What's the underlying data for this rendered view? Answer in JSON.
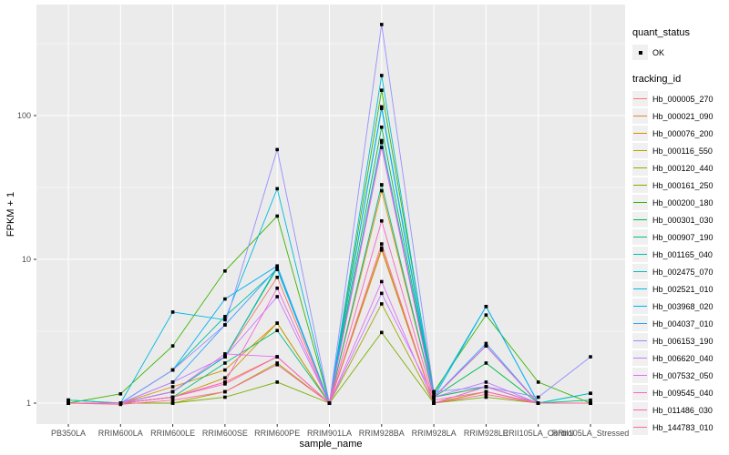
{
  "legend": {
    "quant_status_title": "quant_status",
    "quant_status_items": [
      "OK"
    ],
    "tracking_id_title": "tracking_id"
  },
  "colors": {
    "panel_background": "#EBEBEB",
    "grid": "#FFFFFF",
    "tick_label": "#4D4D4D",
    "axis_title": "#000000",
    "marker": "#000000",
    "legend_key_background": "#F0F0F0"
  },
  "chart_data": {
    "type": "line",
    "title": "",
    "xlabel": "sample_name",
    "ylabel": "FPKM + 1",
    "y_scale": "log10",
    "y_ticks": [
      1,
      10,
      100
    ],
    "y_minor_ticks": [
      3.162,
      31.62,
      316.2
    ],
    "ylim": [
      0.72,
      590
    ],
    "grid": true,
    "legend_position": "right",
    "marker": "black-square",
    "categories": [
      "PB350LA",
      "RRIM600LA",
      "RRIM600LE",
      "RRIM600SE",
      "RRIM600PE",
      "RRIM901LA",
      "RRIM928BA",
      "RRIM928LA",
      "RRIM928LE",
      "RRII105LA_Control",
      "RRII105LA_Stressed"
    ],
    "series": [
      {
        "name": "Hb_000005_270",
        "color": "#F8766D",
        "quant_status": "OK",
        "values": [
          1,
          1,
          1.2,
          2.1,
          7.5,
          1,
          33,
          1.1,
          2.5,
          1,
          1
        ]
      },
      {
        "name": "Hb_000021_090",
        "color": "#EA8331",
        "quant_status": "OK",
        "values": [
          1,
          1,
          1.1,
          1.4,
          2.1,
          1,
          11.6,
          1,
          1.2,
          1,
          1
        ]
      },
      {
        "name": "Hb_000076_200",
        "color": "#D89000",
        "quant_status": "OK",
        "values": [
          1,
          1,
          1.3,
          1.7,
          3.6,
          1,
          30,
          1.1,
          1.3,
          1,
          1
        ]
      },
      {
        "name": "Hb_000116_550",
        "color": "#C09B00",
        "quant_status": "OK",
        "values": [
          1,
          1,
          1.1,
          1.5,
          3.6,
          1,
          12,
          1,
          1.2,
          1,
          1
        ]
      },
      {
        "name": "Hb_000120_440",
        "color": "#A3A500",
        "quant_status": "OK",
        "values": [
          1,
          1,
          1,
          1.2,
          1.9,
          1,
          4.9,
          1,
          1.3,
          1,
          1
        ]
      },
      {
        "name": "Hb_000161_250",
        "color": "#7CAE00",
        "quant_status": "OK",
        "values": [
          1,
          1,
          1,
          1.1,
          1.4,
          1,
          3.1,
          1,
          1.1,
          1,
          1
        ]
      },
      {
        "name": "Hb_000200_180",
        "color": "#39B600",
        "quant_status": "OK",
        "values": [
          1,
          1.16,
          2.5,
          8.3,
          20,
          1,
          150,
          1.2,
          4.1,
          1.4,
          1
        ]
      },
      {
        "name": "Hb_000301_030",
        "color": "#00BB4E",
        "quant_status": "OK",
        "values": [
          1,
          1,
          1.2,
          2.1,
          8.7,
          1,
          83,
          1.1,
          1.9,
          1,
          1
        ]
      },
      {
        "name": "Hb_000907_190",
        "color": "#00BF7D",
        "quant_status": "OK",
        "values": [
          1.05,
          1,
          1.1,
          1.9,
          3.2,
          1,
          67,
          1.1,
          1.3,
          1,
          1.05
        ]
      },
      {
        "name": "Hb_001165_040",
        "color": "#00C1A3",
        "quant_status": "OK",
        "values": [
          1,
          1,
          1.7,
          4,
          8.5,
          1,
          33,
          1.1,
          2.5,
          1,
          1.17
        ]
      },
      {
        "name": "Hb_002475_070",
        "color": "#00BFC4",
        "quant_status": "OK",
        "values": [
          1.05,
          1,
          1.2,
          2.1,
          8.9,
          1,
          115,
          1.15,
          4.7,
          1,
          1.17
        ]
      },
      {
        "name": "Hb_002521_010",
        "color": "#00BAE0",
        "quant_status": "OK",
        "values": [
          1,
          1,
          4.3,
          3.8,
          31,
          1,
          190,
          1.1,
          2.5,
          1,
          1
        ]
      },
      {
        "name": "Hb_003968_020",
        "color": "#00B0F6",
        "quant_status": "OK",
        "values": [
          1,
          1,
          1.7,
          5.3,
          9,
          1,
          112,
          1.1,
          4.7,
          1,
          1
        ]
      },
      {
        "name": "Hb_004037_010",
        "color": "#35A2FF",
        "quant_status": "OK",
        "values": [
          1,
          1,
          1.4,
          3.5,
          8.7,
          1,
          65,
          1.1,
          2.6,
          1,
          1
        ]
      },
      {
        "name": "Hb_006153_190",
        "color": "#9590FF",
        "quant_status": "OK",
        "values": [
          1,
          1,
          1.7,
          3.5,
          58,
          1,
          430,
          1.2,
          1.3,
          1.1,
          2.1
        ]
      },
      {
        "name": "Hb_006620_040",
        "color": "#C77CFF",
        "quant_status": "OK",
        "values": [
          1,
          1,
          1.4,
          2.1,
          5.5,
          1,
          5.8,
          1.1,
          1.4,
          1,
          1
        ]
      },
      {
        "name": "Hb_007532_050",
        "color": "#E76BF3",
        "quant_status": "OK",
        "values": [
          1,
          1,
          1.2,
          2.2,
          2.1,
          1,
          7,
          1,
          1.3,
          1,
          1
        ]
      },
      {
        "name": "Hb_009545_040",
        "color": "#FA62DB",
        "quant_status": "OK",
        "values": [
          1,
          1,
          1.1,
          1.4,
          6.3,
          1,
          60,
          1.1,
          2.5,
          1,
          1
        ]
      },
      {
        "name": "Hb_011486_030",
        "color": "#FF62BC",
        "quant_status": "OK",
        "values": [
          1,
          1,
          1.1,
          1.36,
          2.1,
          1,
          18.5,
          1.05,
          1.2,
          1,
          1
        ]
      },
      {
        "name": "Hb_144783_010",
        "color": "#FF6A98",
        "quant_status": "OK",
        "values": [
          1,
          0.98,
          1.05,
          1.2,
          1.85,
          1,
          12.8,
          1,
          1.15,
          1,
          1
        ]
      }
    ]
  }
}
